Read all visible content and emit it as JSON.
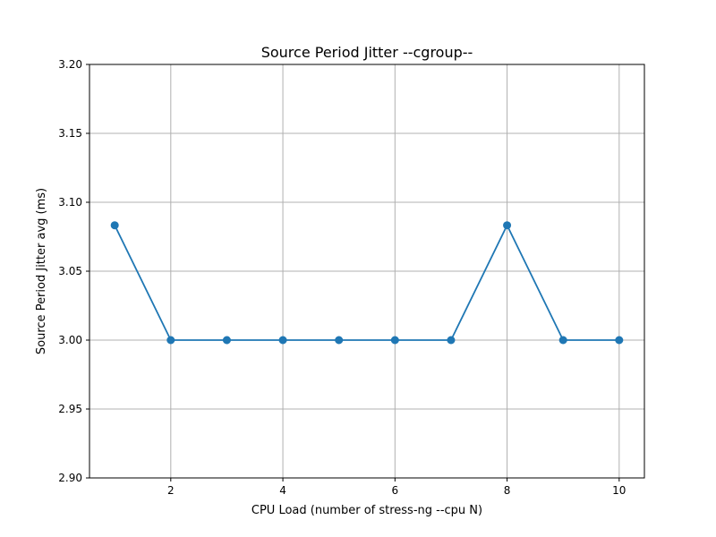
{
  "chart_data": {
    "type": "line",
    "title": "Source Period Jitter --cgroup--",
    "xlabel": "CPU Load (number of stress-ng --cpu N)",
    "ylabel": "Source Period Jitter avg (ms)",
    "x": [
      1,
      2,
      3,
      4,
      5,
      6,
      7,
      8,
      9,
      10
    ],
    "series": [
      {
        "values": [
          3.0833,
          3.0,
          3.0,
          3.0,
          3.0,
          3.0,
          3.0,
          3.0833,
          3.0,
          3.0
        ],
        "color": "#1f77b4",
        "marker": "circle"
      }
    ],
    "xlim": [
      0.55,
      10.45
    ],
    "ylim": [
      2.9,
      3.2
    ],
    "xticks": [
      2,
      4,
      6,
      8,
      10
    ],
    "xtick_labels": [
      "2",
      "4",
      "6",
      "8",
      "10"
    ],
    "yticks": [
      2.9,
      2.95,
      3.0,
      3.05,
      3.1,
      3.15,
      3.2
    ],
    "ytick_labels": [
      "2.90",
      "2.95",
      "3.00",
      "3.05",
      "3.10",
      "3.15",
      "3.20"
    ],
    "grid": true,
    "legend": "none"
  }
}
